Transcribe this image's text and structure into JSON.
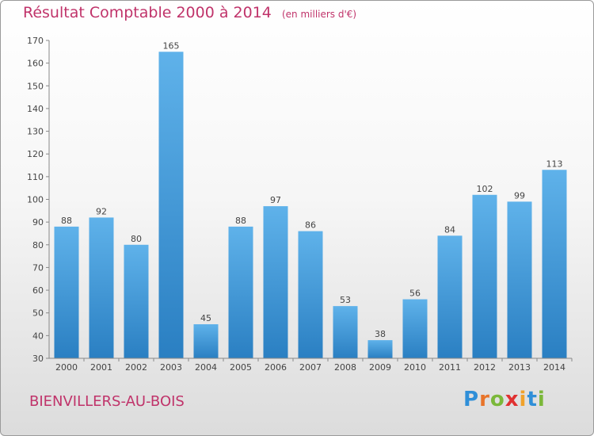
{
  "chart_data": {
    "type": "bar",
    "title": "Résultat Comptable 2000 à 2014",
    "subtitle": "(en milliers d'€)",
    "categories": [
      "2000",
      "2001",
      "2002",
      "2003",
      "2004",
      "2005",
      "2006",
      "2007",
      "2008",
      "2009",
      "2010",
      "2011",
      "2012",
      "2013",
      "2014"
    ],
    "values": [
      88,
      92,
      80,
      165,
      45,
      88,
      97,
      86,
      53,
      38,
      56,
      84,
      102,
      99,
      113
    ],
    "ylim": [
      30,
      170
    ],
    "yticks": [
      30,
      40,
      50,
      60,
      70,
      80,
      90,
      100,
      110,
      120,
      130,
      140,
      150,
      160,
      170
    ],
    "xlabel": "",
    "ylabel": "",
    "grid": false,
    "colors": {
      "bar_light": "#5fb2ea",
      "bar_dark": "#2a7fc2",
      "accent": "#c0336a"
    }
  },
  "city": "BIENVILLERS-AU-BOIS",
  "logo": {
    "text": "Proxiti",
    "letters": [
      "P",
      "r",
      "o",
      "x",
      "i",
      "t",
      "i"
    ]
  }
}
